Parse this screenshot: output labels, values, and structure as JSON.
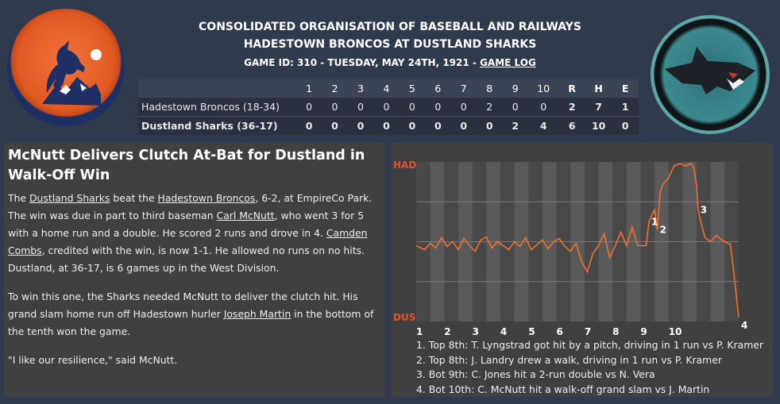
{
  "header": {
    "org_title": "CONSOLIDATED ORGANISATION OF BASEBALL AND RAILWAYS",
    "matchup": "HADESTOWN BRONCOS AT DUSTLAND SHARKS",
    "game_info": "GAME ID: 310 - TUESDAY, MAY 24TH, 1921 - ",
    "game_log_link": "GAME LOG"
  },
  "linescore": {
    "columns": [
      "1",
      "2",
      "3",
      "4",
      "5",
      "6",
      "7",
      "8",
      "9",
      "10",
      "R",
      "H",
      "E"
    ],
    "rows": [
      {
        "team": "Hadestown Broncos (18-34)",
        "cells": [
          "0",
          "0",
          "0",
          "0",
          "0",
          "0",
          "0",
          "2",
          "0",
          "0",
          "2",
          "7",
          "1"
        ]
      },
      {
        "team": "Dustland Sharks (36-17)",
        "cells": [
          "0",
          "0",
          "0",
          "0",
          "0",
          "0",
          "0",
          "0",
          "2",
          "4",
          "6",
          "10",
          "0"
        ]
      }
    ]
  },
  "story": {
    "headline": "McNutt Delivers Clutch At-Bat for Dustland in Walk-Off Win",
    "p1": {
      "s1": "The ",
      "l1": "Dustland Sharks",
      "s2": " beat the ",
      "l2": "Hadestown Broncos",
      "s3": ", 6-2, at EmpireCo Park. The win was due in part to third baseman ",
      "l3": "Carl McNutt",
      "s4": ", who went 3 for 5 with a home run and a double. He scored 2 runs and drove in 4. ",
      "l4": "Camden Combs",
      "s5": ", credited with the win, is now 1-1. He allowed no runs on no hits. Dustland, at 36-17, is 6 games up in the West Division."
    },
    "p2": {
      "s1": "To win this one, the Sharks needed McNutt to deliver the clutch hit. His grand slam home run off Hadestown hurler ",
      "l1": "Joseph Martin",
      "s2": " in the bottom of the tenth won the game."
    },
    "p3": "\"I like our resilience,\" said McNutt."
  },
  "chart_data": {
    "type": "line",
    "title": "",
    "y_top_label": "HAD",
    "y_bottom_label": "DUS",
    "ylim": [
      -1,
      1
    ],
    "inning_labels": [
      "1",
      "2",
      "3",
      "4",
      "5",
      "6",
      "7",
      "8",
      "9",
      "10"
    ],
    "x": [
      0,
      0.3,
      0.5,
      0.7,
      0.9,
      1.1,
      1.3,
      1.5,
      1.7,
      1.9,
      2.1,
      2.3,
      2.5,
      2.7,
      2.9,
      3.1,
      3.3,
      3.5,
      3.7,
      3.9,
      4.1,
      4.3,
      4.5,
      4.7,
      4.9,
      5.1,
      5.3,
      5.5,
      5.7,
      5.9,
      6.1,
      6.3,
      6.5,
      6.7,
      6.9,
      7.1,
      7.3,
      7.5,
      7.7,
      7.9,
      8.0,
      8.2,
      8.3,
      8.5,
      8.6,
      8.7,
      8.8,
      9.0,
      9.2,
      9.4,
      9.6,
      9.8,
      9.9,
      10.0,
      10.05,
      10.15,
      10.3,
      10.5,
      10.7,
      10.9,
      11.1,
      11.2,
      11.3,
      11.5
    ],
    "series": [
      {
        "values": [
          -0.05,
          -0.1,
          -0.02,
          -0.08,
          0.05,
          -0.06,
          0.0,
          -0.1,
          0.04,
          -0.05,
          -0.12,
          0.02,
          0.06,
          -0.08,
          0.0,
          -0.05,
          -0.1,
          0.0,
          -0.06,
          0.05,
          -0.1,
          -0.04,
          0.02,
          -0.09,
          0.0,
          0.04,
          -0.06,
          -0.12,
          -0.02,
          -0.25,
          -0.38,
          -0.15,
          -0.05,
          0.1,
          -0.2,
          -0.05,
          0.12,
          -0.05,
          0.18,
          -0.05,
          -0.05,
          -0.05,
          0.25,
          0.4,
          0.15,
          0.62,
          0.72,
          0.8,
          0.95,
          0.98,
          0.95,
          0.98,
          0.93,
          0.7,
          0.4,
          0.25,
          0.05,
          0.0,
          0.08,
          0.02,
          -0.02,
          -0.03,
          -0.3,
          -0.95
        ]
      }
    ],
    "annotations": [
      {
        "label": "1",
        "x": 8.3
      },
      {
        "label": "2",
        "x": 8.6
      },
      {
        "label": "3",
        "x": 10.05
      },
      {
        "label": "4",
        "x": 11.5
      }
    ],
    "notes": [
      "1. Top 8th: T. Lyngstrad got hit by a pitch, driving in 1 run vs P. Kramer",
      "2. Top 8th: J. Landry drew a walk, driving in 1 run vs P. Kramer",
      "3. Bot 9th: C. Jones hit a 2-run double vs N. Vera",
      "4. Bot 10th: C. McNutt hit a walk-off grand slam vs J. Martin"
    ],
    "colors": {
      "line": "#f07030",
      "axis_label": "#e8502a",
      "band_dark": "#484848",
      "band_light": "#5a5a5a"
    }
  }
}
